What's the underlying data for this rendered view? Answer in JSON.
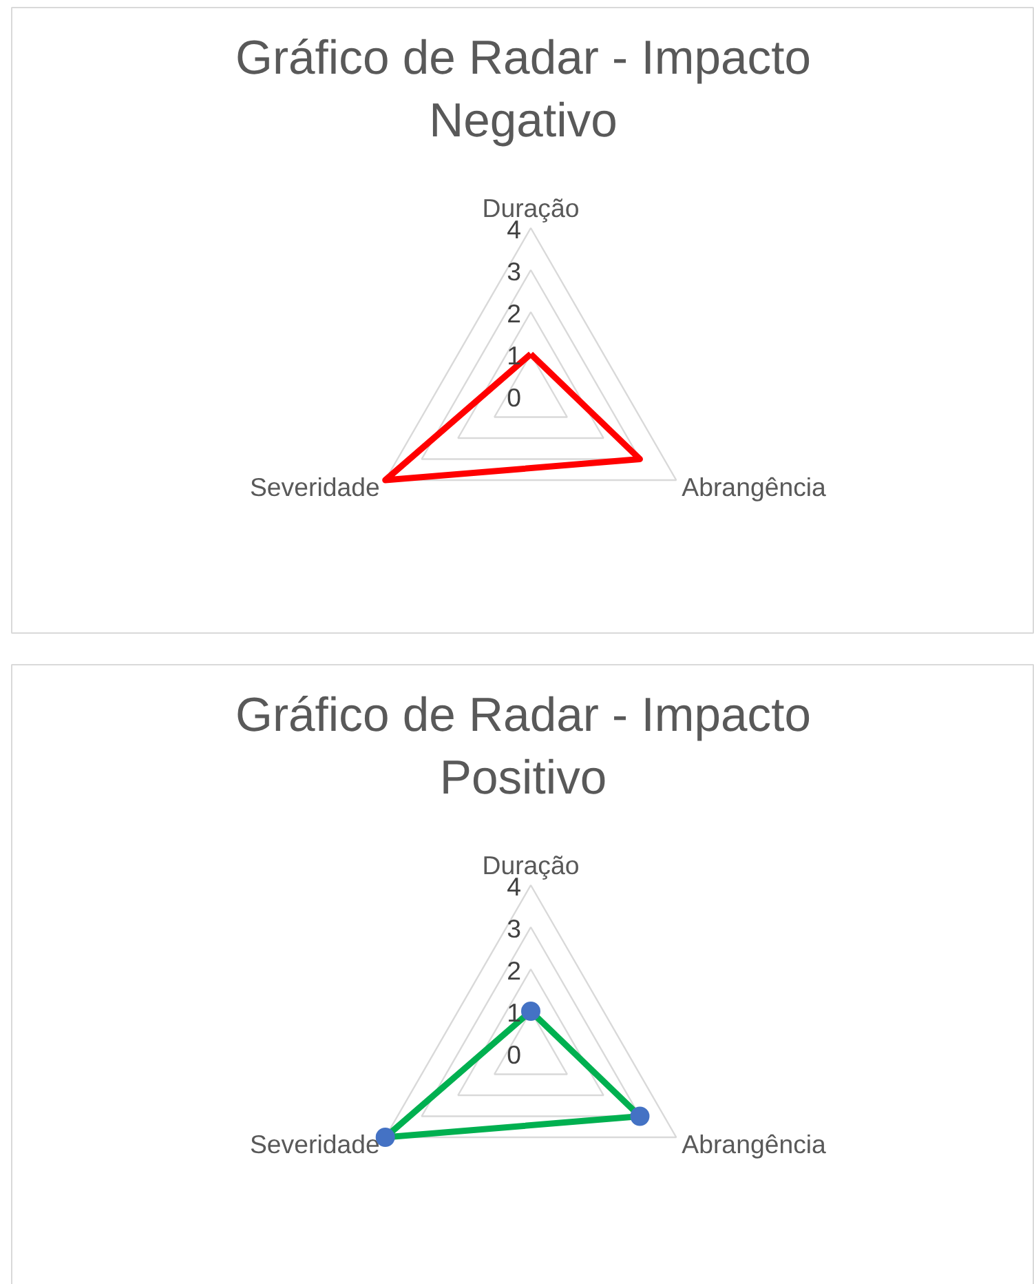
{
  "chart_data": [
    {
      "type": "radar",
      "title": "Gráfico de Radar - Impacto Negativo",
      "categories": [
        "Duração",
        "Abrangência",
        "Severidade"
      ],
      "ylim": [
        0,
        4
      ],
      "yticks": [
        0,
        1,
        2,
        3,
        4
      ],
      "grid": true,
      "marker": "none",
      "series": [
        {
          "color": "#ff0000",
          "values": [
            1,
            3,
            4
          ]
        }
      ]
    },
    {
      "type": "radar",
      "title": "Gráfico de Radar - Impacto Positivo",
      "categories": [
        "Duração",
        "Abrangência",
        "Severidade"
      ],
      "ylim": [
        0,
        4
      ],
      "yticks": [
        0,
        1,
        2,
        3,
        4
      ],
      "grid": true,
      "marker": "circle",
      "series": [
        {
          "color": "#00b050",
          "colors": [
            "#4472c4",
            "#4472c4",
            "#4472c4"
          ],
          "values": [
            1,
            3,
            4
          ]
        }
      ]
    }
  ]
}
